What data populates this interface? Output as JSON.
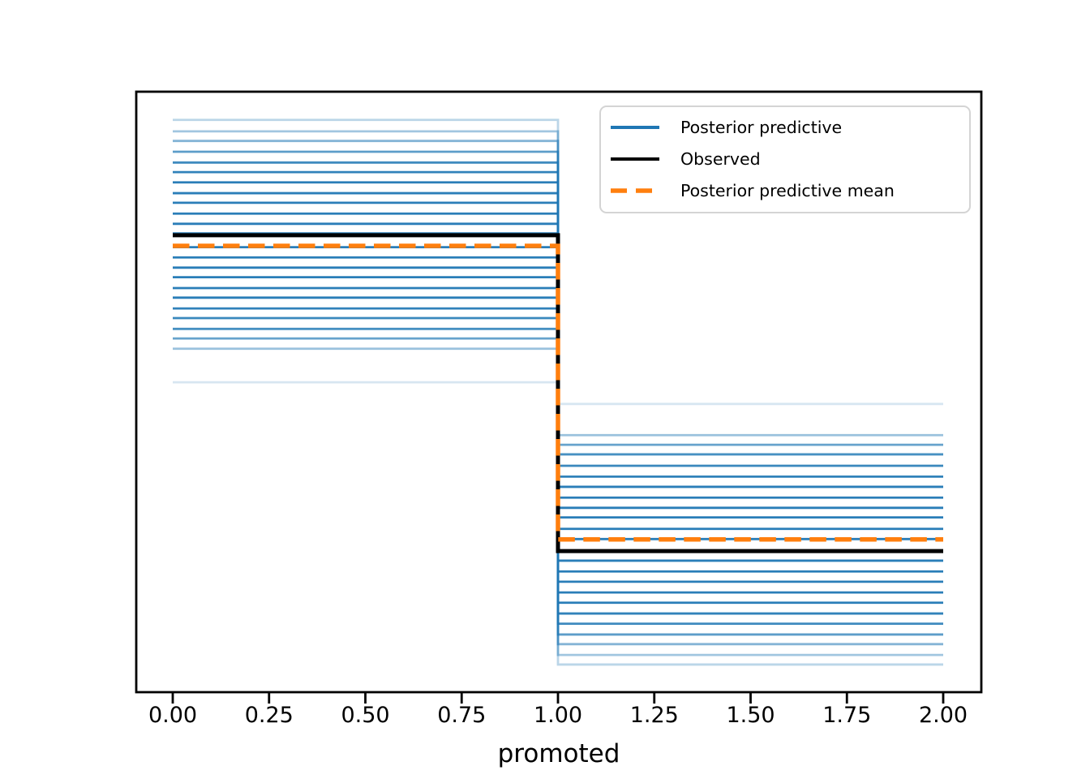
{
  "chart_data": {
    "type": "line",
    "subtype": "posterior-predictive-check-step-plot",
    "title": "",
    "xlabel": "promoted",
    "ylabel": "",
    "xlim": [
      -0.1,
      2.1
    ],
    "x_tick_labels": [
      "0.00",
      "0.25",
      "0.50",
      "0.75",
      "1.00",
      "1.25",
      "1.50",
      "1.75",
      "2.00"
    ],
    "x_tick_values": [
      0.0,
      0.25,
      0.5,
      0.75,
      1.0,
      1.25,
      1.5,
      1.75,
      2.0
    ],
    "y_axis_note": "no y-axis ticks or labels shown; levels given as fraction of plot height above bottom axis",
    "step_x": [
      0,
      1,
      2
    ],
    "step_change_at_x": 1.0,
    "grid": "off",
    "observed": {
      "name": "Observed",
      "color": "#000000",
      "style": "solid",
      "left_level": 0.761,
      "right_level": 0.235
    },
    "posterior_predictive_mean": {
      "name": "Posterior predictive mean",
      "color": "#ff7f0e",
      "style": "dashed",
      "left_level": 0.752,
      "right_level": 0.245
    },
    "posterior_predictive": {
      "name": "Posterior predictive",
      "color": "#1f77b4",
      "style": "solid",
      "samples": [
        {
          "left": 0.953,
          "right": 0.046,
          "alpha": 0.3
        },
        {
          "left": 0.934,
          "right": 0.062,
          "alpha": 0.42
        },
        {
          "left": 0.918,
          "right": 0.08,
          "alpha": 0.55
        },
        {
          "left": 0.9,
          "right": 0.096,
          "alpha": 0.72
        },
        {
          "left": 0.882,
          "right": 0.114,
          "alpha": 0.85
        },
        {
          "left": 0.866,
          "right": 0.131,
          "alpha": 0.92
        },
        {
          "left": 0.849,
          "right": 0.149,
          "alpha": 0.95
        },
        {
          "left": 0.831,
          "right": 0.166,
          "alpha": 0.95
        },
        {
          "left": 0.815,
          "right": 0.184,
          "alpha": 0.95
        },
        {
          "left": 0.797,
          "right": 0.201,
          "alpha": 0.95
        },
        {
          "left": 0.78,
          "right": 0.219,
          "alpha": 0.95
        },
        {
          "left": 0.764,
          "right": 0.236,
          "alpha": 0.95
        },
        {
          "left": 0.741,
          "right": 0.255,
          "alpha": 0.95
        },
        {
          "left": 0.724,
          "right": 0.272,
          "alpha": 0.95
        },
        {
          "left": 0.707,
          "right": 0.291,
          "alpha": 0.95
        },
        {
          "left": 0.691,
          "right": 0.307,
          "alpha": 0.95
        },
        {
          "left": 0.673,
          "right": 0.324,
          "alpha": 0.95
        },
        {
          "left": 0.657,
          "right": 0.342,
          "alpha": 0.95
        },
        {
          "left": 0.639,
          "right": 0.359,
          "alpha": 0.92
        },
        {
          "left": 0.623,
          "right": 0.377,
          "alpha": 0.88
        },
        {
          "left": 0.605,
          "right": 0.396,
          "alpha": 0.82
        },
        {
          "left": 0.589,
          "right": 0.412,
          "alpha": 0.68
        },
        {
          "left": 0.572,
          "right": 0.428,
          "alpha": 0.45
        },
        {
          "left": 0.516,
          "right": 0.48,
          "alpha": 0.18
        }
      ]
    },
    "legend_position": "upper right"
  },
  "legend": {
    "items": [
      {
        "label": "Posterior predictive",
        "color": "#1f77b4",
        "style": "solid"
      },
      {
        "label": "Observed",
        "color": "#000000",
        "style": "solid"
      },
      {
        "label": "Posterior predictive mean",
        "color": "#ff7f0e",
        "style": "dashed"
      }
    ]
  },
  "colors": {
    "posterior_predictive": "#1f77b4",
    "observed": "#000000",
    "posterior_predictive_mean": "#ff7f0e",
    "axis": "#000000",
    "background": "#ffffff",
    "legend_border": "#d4d4d4"
  }
}
